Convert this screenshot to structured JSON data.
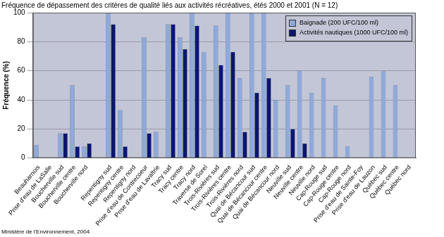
{
  "chart_data": {
    "type": "bar",
    "title": "Fréquence de dépassement des critères de qualité liés aux activités récréatives, étés 2000 et 2001 (N = 12)",
    "y_label": "Fréquence (%)",
    "annotations": [
      "Ministère de l'Environnement, 2004"
    ],
    "categories": [
      "Beauharnois",
      "Prise d'eau de LaSalle",
      "Boucherville sud",
      "Boucherville centre",
      "Boucherville nord",
      null,
      "Repentigny sud",
      "Repentigny centre",
      "Repentigny nord",
      "Prise d'eau de Contrecoeur",
      "Prise d'eau de Lavaltrie",
      "Tracy sud",
      "Tracy centre",
      "Tracy nord",
      "Traverse de Sorel",
      "Trois-Rivières sud",
      "Trois-Rivières centre",
      "Trois-Rivières nord",
      "Quai de Bécancour sud",
      "Quai de Bécancour centre",
      "Quai de Bécancour nord",
      "Neuville sud",
      "Neuville centre",
      "Neuville nord",
      "Cap-Rouge sud",
      "Cap-Rouge centre",
      "Cap-Rouge nord",
      "Prise d'eau de Sainte-Foy",
      "Prise d'eau de Lauzon",
      "Québec sud",
      "Québec centre",
      "Québec nord"
    ],
    "series": [
      {
        "name": "Baignade (200 UFC/100 ml)",
        "color": "#8eaadc",
        "values": [
          9,
          0,
          17,
          50,
          8,
          null,
          100,
          33,
          0,
          83,
          18,
          92,
          83,
          100,
          73,
          91,
          100,
          55,
          100,
          100,
          40,
          50,
          60,
          45,
          55,
          36,
          8,
          0,
          56,
          60,
          50,
          0
        ]
      },
      {
        "name": "Activités nautiques (1000 UFC/100 ml)",
        "color": "#0b1670",
        "values": [
          0,
          0,
          17,
          8,
          10,
          null,
          92,
          8,
          0,
          17,
          0,
          92,
          75,
          91,
          0,
          64,
          73,
          18,
          45,
          55,
          0,
          20,
          10,
          0,
          0,
          0,
          0,
          0,
          0,
          0,
          0,
          0
        ]
      }
    ],
    "ylim": [
      0,
      100
    ],
    "yticks": [
      0,
      20,
      40,
      60,
      80,
      100
    ],
    "grid": true,
    "legend": "top-right"
  }
}
